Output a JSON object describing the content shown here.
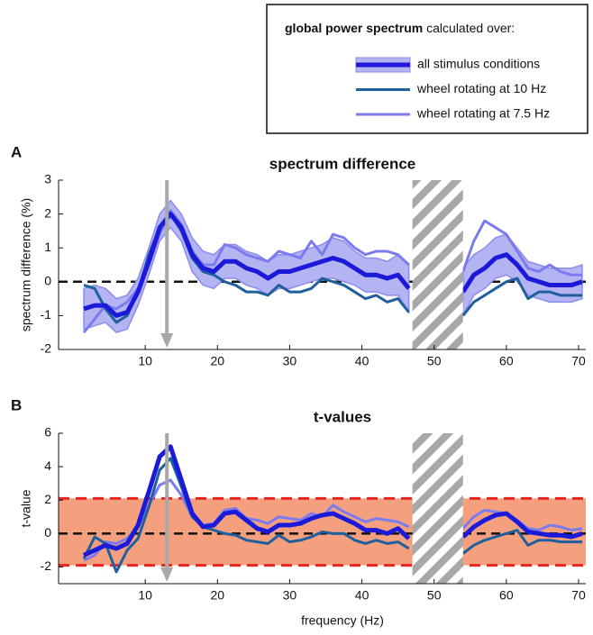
{
  "legend": {
    "title_bold": "global power spectrum",
    "title_rest": "calculated over:"
  },
  "chart_data": [
    {
      "type": "line",
      "panel_label": "A",
      "title": "spectrum difference",
      "y_label": "spectrum difference (%)",
      "xlim": [
        -2,
        71
      ],
      "xticks": [
        10,
        20,
        30,
        40,
        50,
        60,
        70
      ],
      "ylim": [
        -2,
        3
      ],
      "yticks": [
        -2,
        -1,
        0,
        1,
        2,
        3
      ],
      "arrow_x": 13,
      "hatch": [
        47,
        54
      ],
      "x": [
        1.5,
        3,
        4.5,
        6,
        7.5,
        9,
        10.5,
        12,
        13.5,
        15,
        16.5,
        18,
        19.5,
        21,
        22.5,
        24,
        25.5,
        27,
        28.5,
        30,
        31.5,
        33,
        34.5,
        36,
        37.5,
        39,
        40.5,
        42,
        43.5,
        45,
        46.5,
        48,
        54,
        55.5,
        57,
        58.5,
        60,
        61.5,
        63,
        64.5,
        66,
        67.5,
        69,
        70.5
      ],
      "series": [
        {
          "name": "all stimulus conditions",
          "color": "#1a1ad8",
          "band_color": "#b4b4f2",
          "width": 5,
          "values": [
            -0.8,
            -0.7,
            -0.7,
            -1.0,
            -0.9,
            -0.3,
            0.6,
            1.6,
            2.0,
            1.6,
            0.8,
            0.4,
            0.3,
            0.6,
            0.6,
            0.4,
            0.3,
            0.1,
            0.3,
            0.3,
            0.4,
            0.5,
            0.6,
            0.7,
            0.6,
            0.4,
            0.2,
            0.2,
            0.1,
            0.2,
            -0.2,
            null,
            -0.3,
            0.2,
            0.4,
            0.7,
            0.8,
            0.5,
            0.1,
            0.0,
            -0.1,
            -0.1,
            -0.1,
            0.0
          ],
          "error": [
            0.6,
            0.6,
            0.5,
            0.5,
            0.5,
            0.4,
            0.4,
            0.4,
            0.4,
            0.4,
            0.5,
            0.5,
            0.5,
            0.5,
            0.5,
            0.5,
            0.5,
            0.5,
            0.5,
            0.5,
            0.5,
            0.5,
            0.5,
            0.6,
            0.6,
            0.5,
            0.5,
            0.5,
            0.5,
            0.6,
            0.7,
            null,
            0.7,
            0.6,
            0.6,
            0.6,
            0.6,
            0.5,
            0.5,
            0.5,
            0.5,
            0.5,
            0.5,
            0.5
          ]
        },
        {
          "name": "wheel rotating at 10 Hz",
          "color": "#1f5f9e",
          "width": 3,
          "values": [
            -0.1,
            -0.2,
            -0.8,
            -1.2,
            -1.0,
            -0.3,
            0.8,
            1.6,
            2.0,
            1.5,
            0.7,
            0.3,
            0.2,
            0.0,
            -0.1,
            -0.3,
            -0.3,
            -0.4,
            -0.1,
            -0.3,
            -0.3,
            -0.2,
            0.1,
            0.0,
            -0.1,
            -0.3,
            -0.5,
            -0.4,
            -0.6,
            -0.5,
            -0.9,
            null,
            -1.0,
            -0.6,
            -0.4,
            -0.2,
            0.0,
            0.1,
            -0.5,
            -0.3,
            -0.3,
            -0.4,
            -0.4,
            -0.4
          ]
        },
        {
          "name": "wheel rotating at 7.5 Hz",
          "color": "#7b7bef",
          "width": 3,
          "values": [
            -1.5,
            -1.1,
            -0.7,
            -0.8,
            -0.6,
            -0.2,
            0.5,
            1.4,
            2.1,
            1.7,
            0.9,
            0.5,
            0.5,
            1.1,
            1.0,
            0.8,
            0.7,
            0.6,
            0.9,
            0.8,
            0.7,
            1.2,
            0.8,
            1.4,
            1.3,
            1.0,
            0.8,
            0.9,
            0.9,
            0.8,
            0.5,
            null,
            0.3,
            1.2,
            1.8,
            1.6,
            1.4,
            0.9,
            0.4,
            0.3,
            0.5,
            0.3,
            0.2,
            0.2
          ]
        }
      ]
    },
    {
      "type": "line",
      "panel_label": "B",
      "title": "t-values",
      "y_label": "t-value",
      "x_label": "frequency (Hz)",
      "xlim": [
        -2,
        71
      ],
      "xticks": [
        10,
        20,
        30,
        40,
        50,
        60,
        70
      ],
      "ylim": [
        -3,
        6
      ],
      "yticks": [
        -2,
        0,
        2,
        4,
        6
      ],
      "arrow_x": 13,
      "hatch": [
        47,
        54
      ],
      "threshold": [
        -1.9,
        2.1
      ],
      "threshold_color": "#f4a07e",
      "threshold_line_color": "#e8251e",
      "x": [
        1.5,
        3,
        4.5,
        6,
        7.5,
        9,
        10.5,
        12,
        13.5,
        15,
        16.5,
        18,
        19.5,
        21,
        22.5,
        24,
        25.5,
        27,
        28.5,
        30,
        31.5,
        33,
        34.5,
        36,
        37.5,
        39,
        40.5,
        42,
        43.5,
        45,
        46.5,
        48,
        54,
        55.5,
        57,
        58.5,
        60,
        61.5,
        63,
        64.5,
        66,
        67.5,
        69,
        70.5
      ],
      "series": [
        {
          "name": "all stimulus conditions",
          "color": "#1a1ad8",
          "width": 5,
          "values": [
            -1.3,
            -1.0,
            -0.7,
            -0.9,
            -0.6,
            0.5,
            2.5,
            4.6,
            5.2,
            3.2,
            1.2,
            0.4,
            0.5,
            1.2,
            1.3,
            0.8,
            0.3,
            0.1,
            0.5,
            0.5,
            0.6,
            0.9,
            1.1,
            1.2,
            0.9,
            0.6,
            0.2,
            0.2,
            0.0,
            0.3,
            -0.3,
            null,
            -0.2,
            0.4,
            0.8,
            1.1,
            1.2,
            0.7,
            0.1,
            0.0,
            -0.1,
            -0.1,
            -0.2,
            0.0
          ]
        },
        {
          "name": "wheel rotating at 10 Hz",
          "color": "#1f5f9e",
          "width": 3,
          "values": [
            -1.5,
            -0.2,
            -0.6,
            -2.3,
            -1.0,
            -0.3,
            1.6,
            3.8,
            4.5,
            2.8,
            1.0,
            0.4,
            0.2,
            0.0,
            -0.1,
            -0.4,
            -0.5,
            -0.6,
            -0.1,
            -0.5,
            -0.4,
            -0.2,
            0.1,
            0.0,
            0.0,
            -0.4,
            -0.6,
            -0.4,
            -0.6,
            -0.5,
            -0.9,
            null,
            -1.2,
            -0.7,
            -0.4,
            -0.2,
            0.0,
            0.2,
            -0.7,
            -0.4,
            -0.4,
            -0.5,
            -0.5,
            -0.5
          ]
        },
        {
          "name": "wheel rotating at 7.5 Hz",
          "color": "#7b7bef",
          "width": 3,
          "values": [
            -1.6,
            -1.3,
            -0.5,
            -0.6,
            -0.3,
            0.4,
            1.7,
            2.9,
            3.2,
            2.3,
            1.0,
            0.5,
            0.6,
            1.4,
            1.5,
            0.9,
            0.8,
            0.6,
            1.0,
            0.9,
            0.8,
            1.2,
            1.0,
            1.7,
            1.3,
            1.0,
            0.7,
            0.9,
            0.8,
            0.7,
            0.4,
            null,
            0.3,
            1.0,
            1.4,
            1.3,
            1.2,
            0.8,
            0.3,
            0.2,
            0.5,
            0.4,
            0.2,
            0.3
          ]
        }
      ]
    }
  ]
}
